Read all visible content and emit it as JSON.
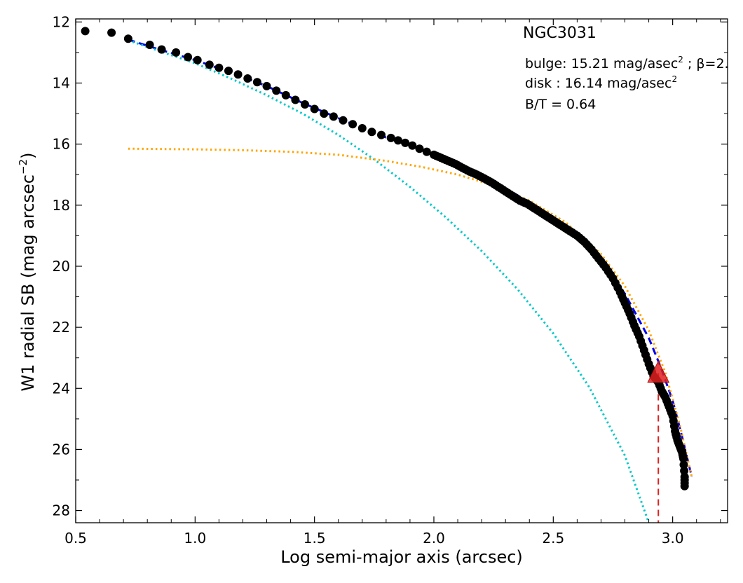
{
  "chart_data": {
    "type": "scatter",
    "title": "NGC3031",
    "xlabel": "Log semi-major axis (arcsec)",
    "ylabel": "W1 radial SB (mag arcsec",
    "ylabel_sup": "−2",
    "ylabel_end": ")",
    "xlim": [
      0.5,
      3.23
    ],
    "ylim": [
      28.4,
      11.9
    ],
    "y_inverted": true,
    "x_ticks": [
      0.5,
      1.0,
      1.5,
      2.0,
      2.5,
      3.0
    ],
    "x_tick_labels": [
      "0.5",
      "1.0",
      "1.5",
      "2.0",
      "2.5",
      "3.0"
    ],
    "y_ticks": [
      12,
      14,
      16,
      18,
      20,
      22,
      24,
      26,
      28
    ],
    "y_tick_labels": [
      "12",
      "14",
      "16",
      "18",
      "20",
      "22",
      "24",
      "26",
      "28"
    ],
    "grid": false,
    "annotations": {
      "bulge_prefix": "bulge: 15.21 mag/asec",
      "bulge_sup": "2",
      "bulge_suffix": " ; β=2.",
      "disk_prefix": "disk  : 16.14 mag/asec",
      "disk_sup": "2",
      "bt": "B/T = 0.64"
    },
    "colors": {
      "points": "#000000",
      "total_fit": "#0000ee",
      "bulge_fit": "#00c8c8",
      "disk_fit": "#ffa500",
      "marker": "#e02020"
    },
    "series": [
      {
        "kind": "points",
        "x": [
          0.54,
          0.65,
          0.72,
          0.81,
          0.86,
          0.92,
          0.97,
          1.01,
          1.06,
          1.1,
          1.14,
          1.18,
          1.22,
          1.26,
          1.3,
          1.34,
          1.38,
          1.42,
          1.46,
          1.5,
          1.54,
          1.58,
          1.62,
          1.66,
          1.7,
          1.74,
          1.78,
          1.82,
          1.85,
          1.88,
          1.91,
          1.94,
          1.97,
          2.0,
          2.03,
          2.06,
          2.09,
          2.12,
          2.15,
          2.18,
          2.21,
          2.24,
          2.27,
          2.3,
          2.33,
          2.36,
          2.39,
          2.42,
          2.45,
          2.48,
          2.51,
          2.54,
          2.57,
          2.6,
          2.63,
          2.66,
          2.69,
          2.72,
          2.75,
          2.78,
          2.8,
          2.82,
          2.84,
          2.86,
          2.88,
          2.9,
          2.92,
          2.94,
          2.955,
          2.97,
          2.985,
          3.0,
          3.01,
          3.02,
          3.03,
          3.04,
          3.045,
          3.05,
          3.05
        ],
        "y": [
          12.3,
          12.35,
          12.55,
          12.75,
          12.9,
          13.0,
          13.15,
          13.25,
          13.4,
          13.5,
          13.6,
          13.72,
          13.85,
          13.97,
          14.1,
          14.25,
          14.4,
          14.55,
          14.7,
          14.85,
          15.0,
          15.1,
          15.22,
          15.35,
          15.48,
          15.6,
          15.7,
          15.8,
          15.88,
          15.96,
          16.05,
          16.15,
          16.25,
          16.35,
          16.45,
          16.55,
          16.65,
          16.78,
          16.9,
          17.0,
          17.12,
          17.25,
          17.4,
          17.55,
          17.7,
          17.85,
          17.95,
          18.1,
          18.25,
          18.4,
          18.55,
          18.7,
          18.85,
          19.0,
          19.2,
          19.45,
          19.75,
          20.05,
          20.4,
          20.85,
          21.2,
          21.55,
          21.95,
          22.3,
          22.75,
          23.2,
          23.6,
          23.8,
          24.1,
          24.3,
          24.6,
          24.9,
          25.4,
          25.7,
          25.9,
          26.1,
          26.3,
          26.9,
          27.2
        ]
      },
      {
        "kind": "line",
        "name": "",
        "style": "dashed",
        "color": "#0000ee",
        "x": [
          0.72,
          0.85,
          1.0,
          1.15,
          1.3,
          1.45,
          1.6,
          1.75,
          1.9,
          2.0,
          2.1,
          2.2,
          2.3,
          2.4,
          2.5,
          2.6,
          2.7,
          2.8,
          2.9,
          2.95,
          3.0,
          3.04,
          3.08
        ],
        "y": [
          12.58,
          12.9,
          13.25,
          13.65,
          14.1,
          14.65,
          15.15,
          15.65,
          16.05,
          16.35,
          16.7,
          17.05,
          17.45,
          17.9,
          18.5,
          19.1,
          19.9,
          20.9,
          22.35,
          23.3,
          24.4,
          25.6,
          26.9
        ]
      },
      {
        "kind": "line",
        "name": "",
        "style": "dotted",
        "color": "#00c8c8",
        "x": [
          0.72,
          0.85,
          1.0,
          1.15,
          1.3,
          1.45,
          1.6,
          1.75,
          1.9,
          2.05,
          2.2,
          2.35,
          2.5,
          2.65,
          2.8,
          2.9
        ],
        "y": [
          12.6,
          12.95,
          13.35,
          13.85,
          14.4,
          15.0,
          15.7,
          16.5,
          17.4,
          18.4,
          19.5,
          20.75,
          22.2,
          23.95,
          26.2,
          28.4
        ]
      },
      {
        "kind": "line",
        "name": "",
        "style": "dotted",
        "color": "#ffa500",
        "x": [
          0.72,
          1.0,
          1.2,
          1.4,
          1.6,
          1.8,
          1.95,
          2.1,
          2.25,
          2.4,
          2.55,
          2.7,
          2.8,
          2.9,
          2.97,
          3.03,
          3.08
        ],
        "y": [
          16.15,
          16.17,
          16.2,
          16.25,
          16.35,
          16.55,
          16.75,
          17.0,
          17.35,
          17.85,
          18.55,
          19.6,
          20.65,
          22.1,
          23.5,
          25.2,
          26.9
        ]
      }
    ],
    "marker": {
      "kind": "triangle",
      "x": 2.94,
      "y": 23.5,
      "drop_line_to": 28.4
    }
  }
}
